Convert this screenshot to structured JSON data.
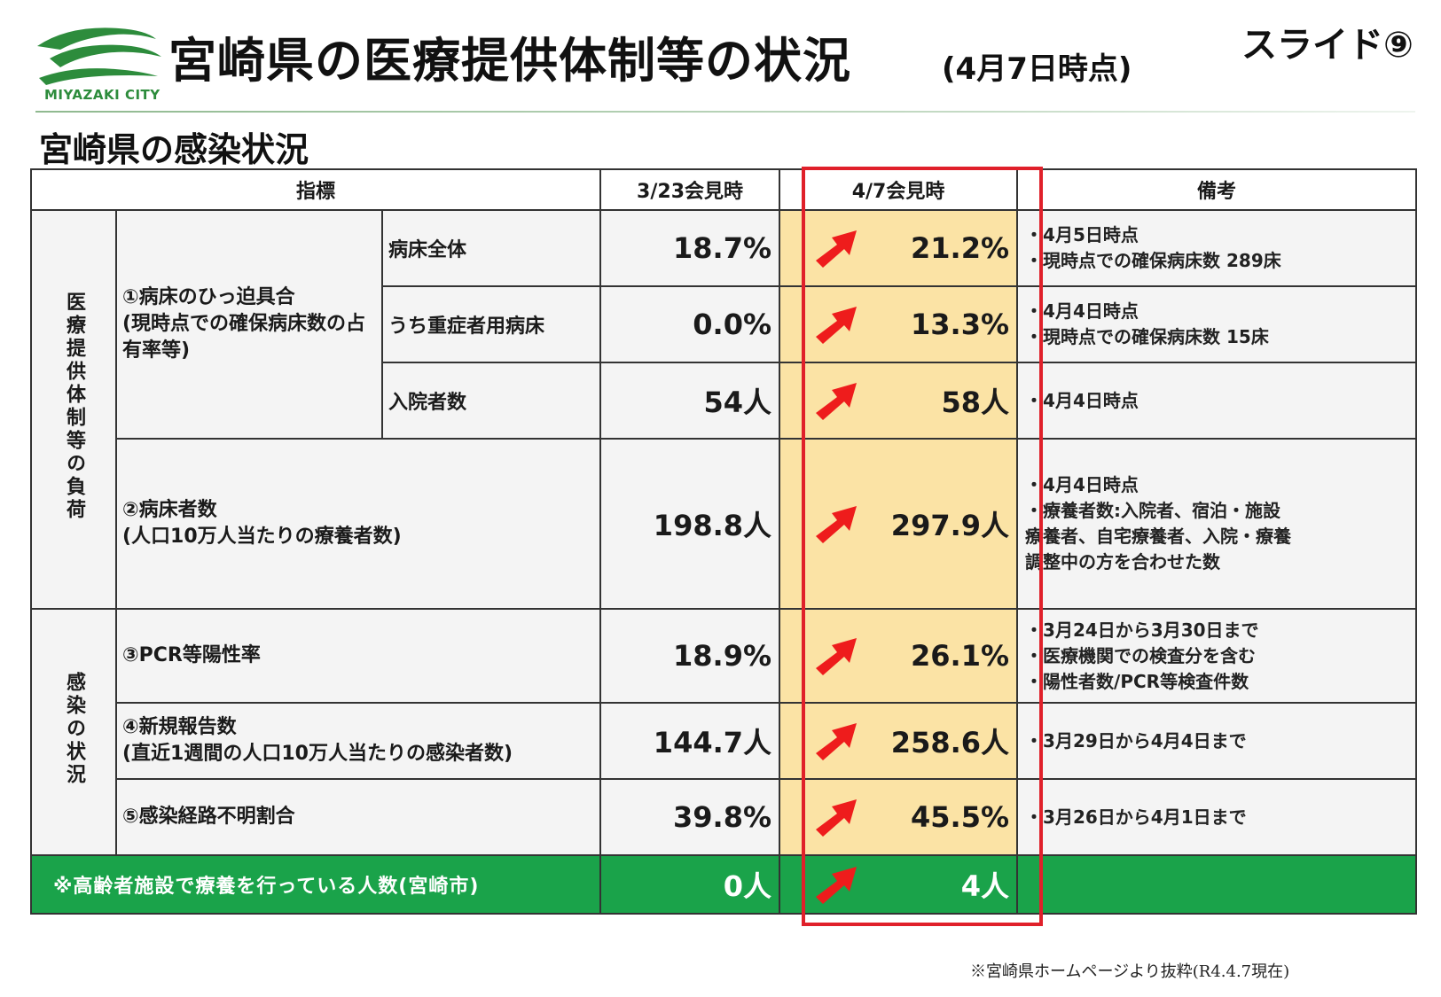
{
  "header": {
    "logo_text": "MIYAZAKI CITY",
    "title": "宮崎県の医療提供体制等の状況",
    "title_date": "(4月7日時点)",
    "slide_label": "スライド⑨"
  },
  "section_title": "宮崎県の感染状況",
  "table": {
    "headers": {
      "indicator": "指標",
      "prev": "3/23会見時",
      "current": "4/7会見時",
      "notes": "備考"
    },
    "groups": {
      "medical": "医療提供体制等の負荷",
      "infection": "感染の状況"
    },
    "rows": [
      {
        "indicator": "①病床のひっ迫具合\n(現時点での確保病床数の占有率等)",
        "sub": "病床全体",
        "prev": "18.7%",
        "current": "21.2%",
        "trend": "up",
        "notes": [
          "・4月5日時点",
          "・現時点での確保病床数 289床"
        ]
      },
      {
        "sub": "うち重症者用病床",
        "prev": "0.0%",
        "current": "13.3%",
        "trend": "up",
        "notes": [
          "・4月4日時点",
          "・現時点での確保病床数 15床"
        ]
      },
      {
        "sub": "入院者数",
        "prev": "54人",
        "current": "58人",
        "trend": "up",
        "notes": [
          "・4月4日時点"
        ]
      },
      {
        "indicator": "②病床者数\n(人口10万人当たりの療養者数)",
        "prev": "198.8人",
        "current": "297.9人",
        "trend": "up",
        "notes": [
          "・4月4日時点",
          "・療養者数:入院者、宿泊・施設",
          "療養者、自宅療養者、入院・療養",
          "調整中の方を合わせた数"
        ]
      },
      {
        "indicator": "③PCR等陽性率",
        "prev": "18.9%",
        "current": "26.1%",
        "trend": "up",
        "notes": [
          "・3月24日から3月30日まで",
          "・医療機関での検査分を含む",
          "・陽性者数/PCR等検査件数"
        ]
      },
      {
        "indicator": "④新規報告数\n(直近1週間の人口10万人当たりの感染者数)",
        "prev": "144.7人",
        "current": "258.6人",
        "trend": "up",
        "notes": [
          "・3月29日から4月4日まで"
        ]
      },
      {
        "indicator": "⑤感染経路不明割合",
        "prev": "39.8%",
        "current": "45.5%",
        "trend": "up",
        "notes": [
          "・3月26日から4月1日まで"
        ]
      }
    ],
    "footer_row": {
      "label": "※高齢者施設で療養を行っている人数(宮崎市)",
      "prev": "0人",
      "current": "4人",
      "trend": "up"
    }
  },
  "source_note": "※宮崎県ホームページより抜粋(R4.4.7現在)",
  "colors": {
    "highlight_fill": "#fbe3a5",
    "highlight_border": "#e0202a",
    "arrow": "#ee1c1c",
    "green_row": "#1aa34a",
    "logo_green": "#2d8c3c"
  },
  "icons": {
    "trend_up": "arrow-up-right-icon"
  }
}
